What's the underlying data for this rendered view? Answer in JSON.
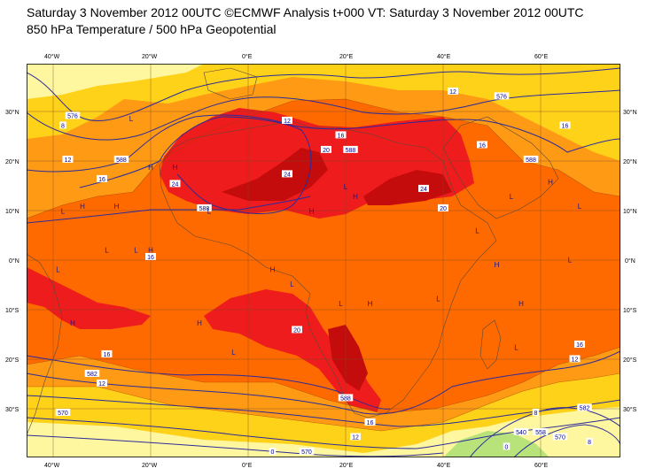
{
  "title": {
    "line1": "Saturday 3 November 2012 00UTC ©ECMWF Analysis t+000 VT: Saturday 3 November 2012 00UTC",
    "line2": "850 hPa Temperature / 500 hPa Geopotential"
  },
  "axes": {
    "lon_ticks": [
      "40°W",
      "20°W",
      "0°E",
      "20°E",
      "40°E",
      "60°E"
    ],
    "lat_ticks_right": [
      "30°N",
      "20°N",
      "10°N",
      "0°N",
      "10°S",
      "20°S",
      "30°S"
    ],
    "lat_ticks_left": [
      "30°N",
      "20°N",
      "10°N",
      "0°N",
      "10°S",
      "20°S",
      "30°S"
    ]
  },
  "colors": {
    "t_8": "#fff7a0",
    "t_12": "#ffd21a",
    "t_16": "#ff9a14",
    "t_20": "#ff6a00",
    "t_24": "#ee1c1c",
    "t_28": "#c40c0c",
    "cold": "#b8e27a",
    "geo_contour": "#2b2b9a",
    "temp_contour": "#8b3a00",
    "coast": "#5a4a3a"
  },
  "contour_labels": [
    {
      "text": "576",
      "lon": -36,
      "lat": 29
    },
    {
      "text": "8",
      "lon": -38,
      "lat": 27
    },
    {
      "text": "12",
      "lon": -37,
      "lat": 20
    },
    {
      "text": "16",
      "lon": -30,
      "lat": 16
    },
    {
      "text": "588",
      "lon": -26,
      "lat": 20
    },
    {
      "text": "12",
      "lon": 8,
      "lat": 28
    },
    {
      "text": "16",
      "lon": 19,
      "lat": 25
    },
    {
      "text": "20",
      "lon": 16,
      "lat": 22
    },
    {
      "text": "588",
      "lon": 21,
      "lat": 22
    },
    {
      "text": "24",
      "lon": -15,
      "lat": 15
    },
    {
      "text": "24",
      "lon": 8,
      "lat": 17
    },
    {
      "text": "24",
      "lon": 36,
      "lat": 14
    },
    {
      "text": "588",
      "lon": -9,
      "lat": 10
    },
    {
      "text": "20",
      "lon": 40,
      "lat": 10
    },
    {
      "text": "12",
      "lon": 42,
      "lat": 34
    },
    {
      "text": "576",
      "lon": 52,
      "lat": 33
    },
    {
      "text": "16",
      "lon": 48,
      "lat": 23
    },
    {
      "text": "588",
      "lon": 58,
      "lat": 20
    },
    {
      "text": "16",
      "lon": 65,
      "lat": 27
    },
    {
      "text": "16",
      "lon": -20,
      "lat": 0
    },
    {
      "text": "20",
      "lon": 10,
      "lat": -15
    },
    {
      "text": "16",
      "lon": -29,
      "lat": -20
    },
    {
      "text": "582",
      "lon": -32,
      "lat": -24
    },
    {
      "text": "12",
      "lon": -30,
      "lat": -26
    },
    {
      "text": "570",
      "lon": -38,
      "lat": -32
    },
    {
      "text": "588",
      "lon": 20,
      "lat": -29
    },
    {
      "text": "16",
      "lon": 25,
      "lat": -34
    },
    {
      "text": "12",
      "lon": 22,
      "lat": -37
    },
    {
      "text": "570",
      "lon": 12,
      "lat": -40
    },
    {
      "text": "0",
      "lon": 5,
      "lat": -40
    },
    {
      "text": "8",
      "lon": 59,
      "lat": -32
    },
    {
      "text": "582",
      "lon": 69,
      "lat": -31
    },
    {
      "text": "12",
      "lon": 67,
      "lat": -21
    },
    {
      "text": "16",
      "lon": 68,
      "lat": -18
    },
    {
      "text": "540",
      "lon": 56,
      "lat": -36
    },
    {
      "text": "4",
      "lon": 59,
      "lat": -36
    },
    {
      "text": "558",
      "lon": 60,
      "lat": -36
    },
    {
      "text": "570",
      "lon": 64,
      "lat": -37
    },
    {
      "text": "0",
      "lon": 53,
      "lat": -39
    },
    {
      "text": "8",
      "lon": 70,
      "lat": -38
    }
  ],
  "pressure_centers": [
    {
      "text": "L",
      "lon": -24,
      "lat": 28
    },
    {
      "text": "H",
      "lon": -15,
      "lat": 18
    },
    {
      "text": "H",
      "lon": -20,
      "lat": 18
    },
    {
      "text": "H",
      "lon": -34,
      "lat": 10
    },
    {
      "text": "L",
      "lon": -38,
      "lat": 9
    },
    {
      "text": "H",
      "lon": -27,
      "lat": 10
    },
    {
      "text": "L",
      "lon": -8,
      "lat": 9
    },
    {
      "text": "H",
      "lon": 13,
      "lat": 9
    },
    {
      "text": "L",
      "lon": 20,
      "lat": 14
    },
    {
      "text": "H",
      "lon": 22,
      "lat": 12
    },
    {
      "text": "L",
      "lon": 47,
      "lat": 5
    },
    {
      "text": "L",
      "lon": 54,
      "lat": 12
    },
    {
      "text": "H",
      "lon": 62,
      "lat": 15
    },
    {
      "text": "L",
      "lon": 68,
      "lat": 10
    },
    {
      "text": "L",
      "lon": -23,
      "lat": 1
    },
    {
      "text": "H",
      "lon": -20,
      "lat": 1
    },
    {
      "text": "L",
      "lon": -29,
      "lat": 1
    },
    {
      "text": "H",
      "lon": 5,
      "lat": -3
    },
    {
      "text": "L",
      "lon": 9,
      "lat": -6
    },
    {
      "text": "H",
      "lon": 25,
      "lat": -10
    },
    {
      "text": "L",
      "lon": 19,
      "lat": -10
    },
    {
      "text": "L",
      "lon": 39,
      "lat": -9
    },
    {
      "text": "H",
      "lon": 51,
      "lat": -2
    },
    {
      "text": "H",
      "lon": 56,
      "lat": -10
    },
    {
      "text": "L",
      "lon": 55,
      "lat": -19
    },
    {
      "text": "L",
      "lon": -3,
      "lat": -20
    },
    {
      "text": "H",
      "lon": -10,
      "lat": -14
    },
    {
      "text": "H",
      "lon": -36,
      "lat": -14
    },
    {
      "text": "L",
      "lon": 66,
      "lat": -1
    },
    {
      "text": "L",
      "lon": -39,
      "lat": -3
    }
  ]
}
